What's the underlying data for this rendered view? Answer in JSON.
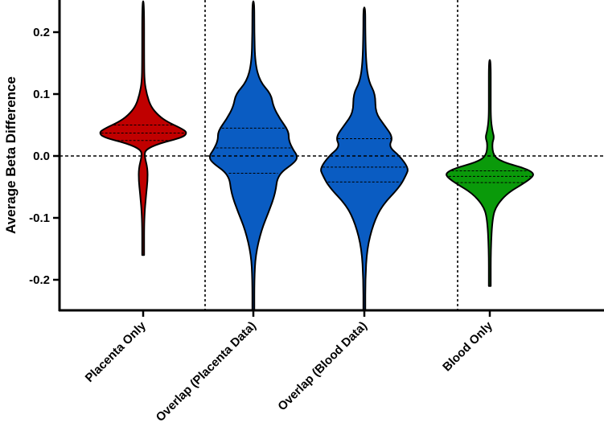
{
  "chart_data": {
    "type": "violin",
    "ylabel": "Average Beta Difference",
    "ylim": [
      -0.25,
      0.25
    ],
    "yticks": [
      {
        "value": 0.2,
        "label": "0.2"
      },
      {
        "value": 0.1,
        "label": "0.1"
      },
      {
        "value": 0.0,
        "label": "0.0"
      },
      {
        "value": -0.1,
        "label": "-0.1"
      },
      {
        "value": -0.2,
        "label": "-0.2"
      }
    ],
    "reference_line": 0.0,
    "group_separators_after": [
      1,
      3
    ],
    "categories": [
      "Placenta Only",
      "Overlap (Placenta Data)",
      "Overlap (Blood Data)",
      "Blood Only"
    ],
    "series": [
      {
        "category": "Placenta Only",
        "color": "#c00000",
        "min": -0.16,
        "max": 0.25,
        "quartiles": [
          0.025,
          0.037,
          0.05
        ],
        "density": [
          [
            -0.16,
            0.005
          ],
          [
            -0.1,
            0.015
          ],
          [
            -0.06,
            0.07
          ],
          [
            -0.04,
            0.1
          ],
          [
            -0.02,
            0.1
          ],
          [
            0.0,
            0.03
          ],
          [
            0.01,
            0.05
          ],
          [
            0.02,
            0.35
          ],
          [
            0.03,
            0.9
          ],
          [
            0.038,
            1.0
          ],
          [
            0.045,
            0.85
          ],
          [
            0.055,
            0.55
          ],
          [
            0.065,
            0.35
          ],
          [
            0.08,
            0.17
          ],
          [
            0.1,
            0.08
          ],
          [
            0.12,
            0.03
          ],
          [
            0.15,
            0.01
          ],
          [
            0.25,
            0.005
          ]
        ]
      },
      {
        "category": "Overlap (Placenta Data)",
        "color": "#0a5cc2",
        "min": -0.25,
        "max": 0.25,
        "quartiles": [
          -0.028,
          0.013,
          0.045
        ],
        "density": [
          [
            -0.25,
            0.01
          ],
          [
            -0.2,
            0.02
          ],
          [
            -0.16,
            0.05
          ],
          [
            -0.12,
            0.18
          ],
          [
            -0.09,
            0.35
          ],
          [
            -0.06,
            0.5
          ],
          [
            -0.03,
            0.55
          ],
          [
            -0.01,
            0.95
          ],
          [
            0.0,
            1.0
          ],
          [
            0.01,
            0.9
          ],
          [
            0.025,
            0.8
          ],
          [
            0.04,
            0.8
          ],
          [
            0.06,
            0.6
          ],
          [
            0.08,
            0.45
          ],
          [
            0.1,
            0.4
          ],
          [
            0.12,
            0.15
          ],
          [
            0.15,
            0.04
          ],
          [
            0.2,
            0.02
          ],
          [
            0.25,
            0.01
          ]
        ]
      },
      {
        "category": "Overlap (Blood Data)",
        "color": "#0a5cc2",
        "min": -0.25,
        "max": 0.24,
        "quartiles": [
          -0.042,
          -0.018,
          0.028
        ],
        "density": [
          [
            -0.25,
            0.01
          ],
          [
            -0.2,
            0.02
          ],
          [
            -0.15,
            0.06
          ],
          [
            -0.11,
            0.2
          ],
          [
            -0.08,
            0.4
          ],
          [
            -0.05,
            0.8
          ],
          [
            -0.03,
            0.95
          ],
          [
            -0.02,
            1.0
          ],
          [
            0.0,
            0.8
          ],
          [
            0.015,
            0.55
          ],
          [
            0.03,
            0.65
          ],
          [
            0.05,
            0.45
          ],
          [
            0.07,
            0.25
          ],
          [
            0.1,
            0.25
          ],
          [
            0.12,
            0.1
          ],
          [
            0.15,
            0.04
          ],
          [
            0.2,
            0.02
          ],
          [
            0.24,
            0.01
          ]
        ]
      },
      {
        "category": "Blood Only",
        "color": "#0a9a0a",
        "min": -0.21,
        "max": 0.155,
        "quartiles": [
          -0.043,
          -0.033,
          -0.024
        ],
        "density": [
          [
            -0.21,
            0.005
          ],
          [
            -0.15,
            0.01
          ],
          [
            -0.1,
            0.06
          ],
          [
            -0.08,
            0.15
          ],
          [
            -0.06,
            0.4
          ],
          [
            -0.045,
            0.75
          ],
          [
            -0.035,
            0.95
          ],
          [
            -0.028,
            1.0
          ],
          [
            -0.02,
            0.8
          ],
          [
            -0.01,
            0.3
          ],
          [
            0.0,
            0.08
          ],
          [
            0.02,
            0.05
          ],
          [
            0.03,
            0.1
          ],
          [
            0.04,
            0.06
          ],
          [
            0.06,
            0.02
          ],
          [
            0.1,
            0.01
          ],
          [
            0.155,
            0.005
          ]
        ]
      }
    ]
  }
}
